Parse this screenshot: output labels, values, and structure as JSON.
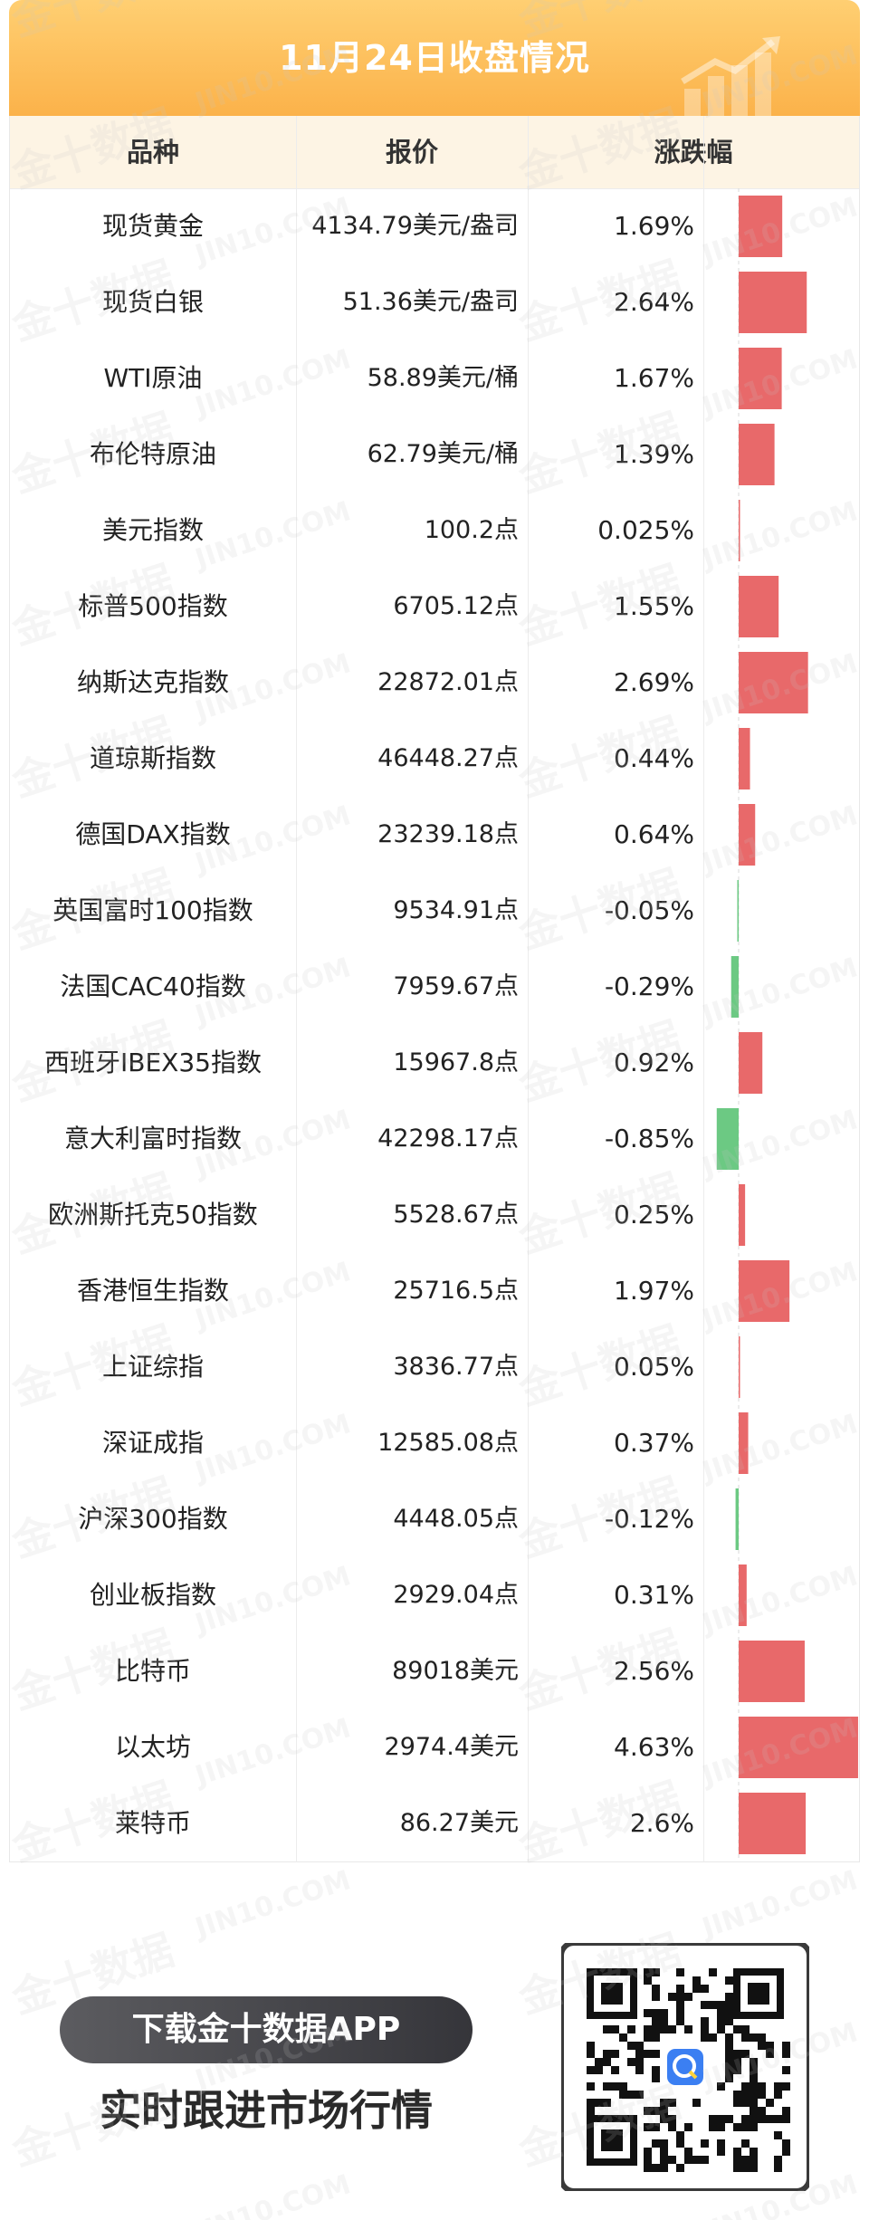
{
  "header": {
    "title": "11月24日收盘情况"
  },
  "table": {
    "columns": [
      "品种",
      "报价",
      "涨跌幅"
    ]
  },
  "chart_data": {
    "type": "table",
    "title": "11月24日收盘情况",
    "columns": [
      "品种",
      "报价",
      "涨跌幅"
    ],
    "rows": [
      {
        "name": "现货黄金",
        "price": "4134.79美元/盎司",
        "pct_label": "1.69%",
        "pct": 1.69
      },
      {
        "name": "现货白银",
        "price": "51.36美元/盎司",
        "pct_label": "2.64%",
        "pct": 2.64
      },
      {
        "name": "WTI原油",
        "price": "58.89美元/桶",
        "pct_label": "1.67%",
        "pct": 1.67
      },
      {
        "name": "布伦特原油",
        "price": "62.79美元/桶",
        "pct_label": "1.39%",
        "pct": 1.39
      },
      {
        "name": "美元指数",
        "price": "100.2点",
        "pct_label": "0.025%",
        "pct": 0.025
      },
      {
        "name": "标普500指数",
        "price": "6705.12点",
        "pct_label": "1.55%",
        "pct": 1.55
      },
      {
        "name": "纳斯达克指数",
        "price": "22872.01点",
        "pct_label": "2.69%",
        "pct": 2.69
      },
      {
        "name": "道琼斯指数",
        "price": "46448.27点",
        "pct_label": "0.44%",
        "pct": 0.44
      },
      {
        "name": "德国DAX指数",
        "price": "23239.18点",
        "pct_label": "0.64%",
        "pct": 0.64
      },
      {
        "name": "英国富时100指数",
        "price": "9534.91点",
        "pct_label": "-0.05%",
        "pct": -0.05
      },
      {
        "name": "法国CAC40指数",
        "price": "7959.67点",
        "pct_label": "-0.29%",
        "pct": -0.29
      },
      {
        "name": "西班牙IBEX35指数",
        "price": "15967.8点",
        "pct_label": "0.92%",
        "pct": 0.92
      },
      {
        "name": "意大利富时指数",
        "price": "42298.17点",
        "pct_label": "-0.85%",
        "pct": -0.85
      },
      {
        "name": "欧洲斯托克50指数",
        "price": "5528.67点",
        "pct_label": "0.25%",
        "pct": 0.25
      },
      {
        "name": "香港恒生指数",
        "price": "25716.5点",
        "pct_label": "1.97%",
        "pct": 1.97
      },
      {
        "name": "上证综指",
        "price": "3836.77点",
        "pct_label": "0.05%",
        "pct": 0.05
      },
      {
        "name": "深证成指",
        "price": "12585.08点",
        "pct_label": "0.37%",
        "pct": 0.37
      },
      {
        "name": "沪深300指数",
        "price": "4448.05点",
        "pct_label": "-0.12%",
        "pct": -0.12
      },
      {
        "name": "创业板指数",
        "price": "2929.04点",
        "pct_label": "0.31%",
        "pct": 0.31
      },
      {
        "name": "比特币",
        "price": "89018美元",
        "pct_label": "2.56%",
        "pct": 2.56
      },
      {
        "name": "以太坊",
        "price": "2974.4美元",
        "pct_label": "4.63%",
        "pct": 4.63
      },
      {
        "name": "莱特币",
        "price": "86.27美元",
        "pct_label": "2.6%",
        "pct": 2.6
      }
    ],
    "colors": {
      "up": "#e8696a",
      "down": "#6cc983",
      "accent": "#fbb24a",
      "header_bg": "#fdf4e4"
    }
  },
  "footer": {
    "cta_label": "下载金十数据APP",
    "slogan": "实时跟进市场行情"
  },
  "watermark": {
    "cn": "金十数据",
    "en": "JIN10.COM"
  }
}
